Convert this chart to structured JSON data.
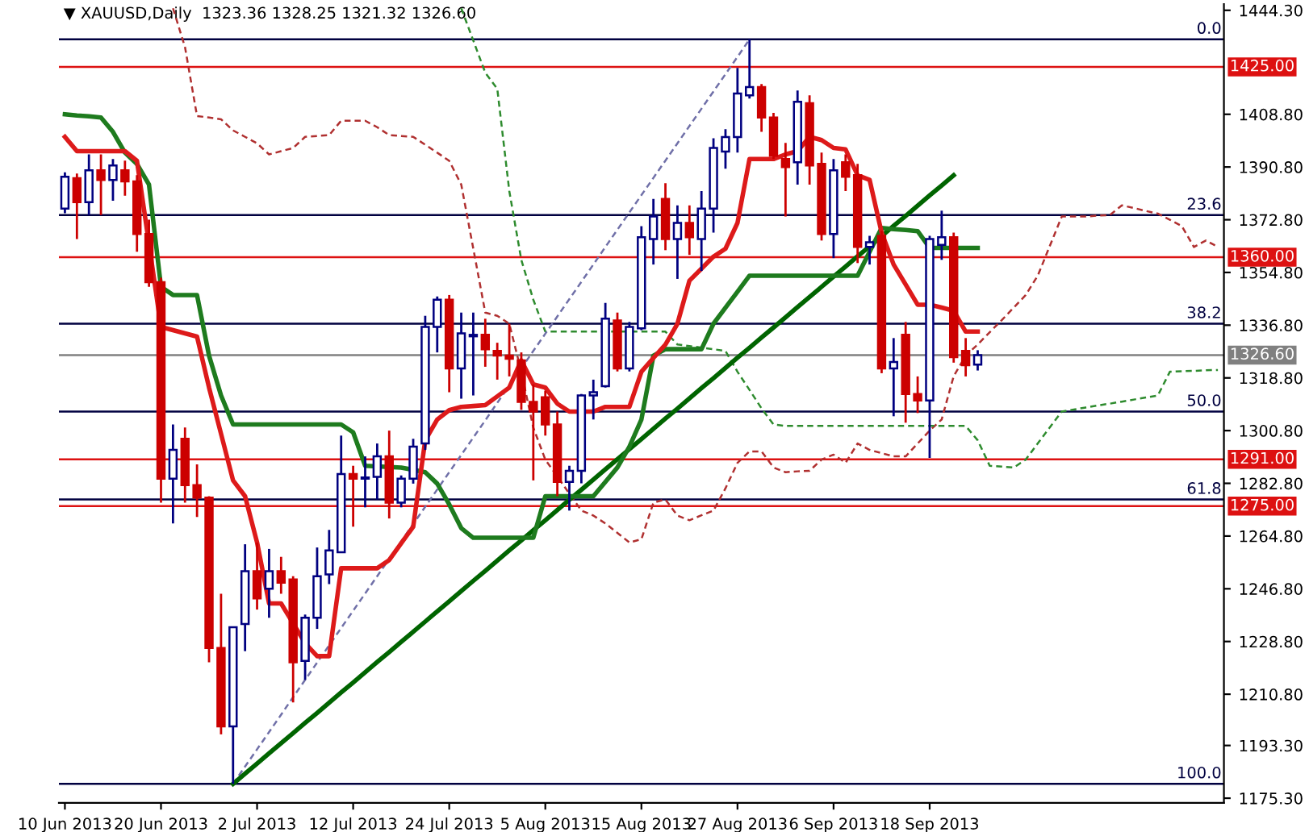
{
  "chart_data": {
    "type": "candlestick",
    "title": "▼ XAUUSD,Daily  1323.36 1328.25 1321.32 1326.60",
    "categories": [
      "10 Jun 2013",
      null,
      null,
      null,
      null,
      null,
      null,
      null,
      "20 Jun 2013",
      null,
      null,
      null,
      null,
      null,
      null,
      null,
      "2 Jul 2013",
      null,
      null,
      null,
      null,
      null,
      null,
      null,
      "12 Jul 2013",
      null,
      null,
      null,
      null,
      null,
      null,
      null,
      "24 Jul 2013",
      null,
      null,
      null,
      null,
      null,
      null,
      null,
      "5 Aug 2013",
      null,
      null,
      null,
      null,
      null,
      null,
      null,
      "15 Aug 2013",
      null,
      null,
      null,
      null,
      null,
      null,
      null,
      "27 Aug 2013",
      null,
      null,
      null,
      null,
      null,
      null,
      null,
      "6 Sep 2013",
      null,
      null,
      null,
      null,
      null,
      null,
      null,
      "18 Sep 2013",
      null,
      null,
      null,
      null,
      null,
      null,
      null,
      null,
      null,
      null,
      null,
      null,
      null,
      null,
      null,
      null,
      null,
      null,
      null,
      null,
      null,
      null,
      null,
      null
    ],
    "ohlc": [
      [
        1376.6,
        1389.0,
        1375.0,
        1387.5
      ],
      [
        1387.0,
        1388.6,
        1366.2,
        1378.8
      ],
      [
        1378.8,
        1395.1,
        1374.4,
        1389.7
      ],
      [
        1389.7,
        1395.1,
        1374.4,
        1386.4
      ],
      [
        1386.4,
        1393.5,
        1379.3,
        1391.3
      ],
      [
        1389.7,
        1393.0,
        1381.0,
        1385.9
      ],
      [
        1385.9,
        1388.0,
        1361.9,
        1367.9
      ],
      [
        1367.9,
        1372.8,
        1349.9,
        1351.5
      ],
      [
        1351.5,
        1353.0,
        1276.2,
        1284.4
      ],
      [
        1284.4,
        1302.9,
        1269.1,
        1294.2
      ],
      [
        1298.0,
        1301.9,
        1276.2,
        1282.2
      ],
      [
        1282.2,
        1289.3,
        1271.3,
        1277.9
      ],
      [
        1277.9,
        1278.4,
        1221.7,
        1226.6
      ],
      [
        1226.6,
        1245.1,
        1197.1,
        1199.8
      ],
      [
        1199.8,
        1233.7,
        1180.2,
        1233.7
      ],
      [
        1234.8,
        1262.0,
        1225.5,
        1252.8
      ],
      [
        1252.8,
        1262.6,
        1239.7,
        1243.5
      ],
      [
        1246.8,
        1260.4,
        1236.9,
        1252.8
      ],
      [
        1252.8,
        1257.7,
        1245.1,
        1248.9
      ],
      [
        1250.0,
        1251.1,
        1208.0,
        1221.7
      ],
      [
        1222.2,
        1238.0,
        1215.7,
        1236.9
      ],
      [
        1236.9,
        1260.9,
        1233.1,
        1251.1
      ],
      [
        1251.7,
        1266.9,
        1248.4,
        1259.9
      ],
      [
        1259.3,
        1299.1,
        1259.3,
        1286.0
      ],
      [
        1286.0,
        1288.8,
        1268.0,
        1284.4
      ],
      [
        1284.4,
        1292.0,
        1274.6,
        1284.6
      ],
      [
        1285.0,
        1296.4,
        1277.3,
        1292.0
      ],
      [
        1292.0,
        1300.8,
        1270.8,
        1276.2
      ],
      [
        1276.2,
        1285.5,
        1274.6,
        1284.4
      ],
      [
        1284.4,
        1298.0,
        1282.7,
        1295.3
      ],
      [
        1296.4,
        1340.0,
        1294.2,
        1336.2
      ],
      [
        1336.2,
        1346.6,
        1327.5,
        1345.5
      ],
      [
        1345.5,
        1347.1,
        1313.9,
        1322.0
      ],
      [
        1322.0,
        1341.1,
        1311.7,
        1334.0
      ],
      [
        1333.0,
        1341.1,
        1312.8,
        1333.5
      ],
      [
        1333.5,
        1339.0,
        1322.6,
        1328.6
      ],
      [
        1328.0,
        1330.8,
        1318.2,
        1326.4
      ],
      [
        1326.4,
        1337.3,
        1319.3,
        1325.3
      ],
      [
        1324.8,
        1327.5,
        1307.9,
        1310.6
      ],
      [
        1310.6,
        1316.6,
        1283.8,
        1307.3
      ],
      [
        1312.2,
        1314.4,
        1299.1,
        1302.9
      ],
      [
        1302.9,
        1307.3,
        1278.4,
        1283.3
      ],
      [
        1283.3,
        1288.8,
        1273.5,
        1287.1
      ],
      [
        1287.1,
        1313.3,
        1282.8,
        1312.8
      ],
      [
        1312.8,
        1318.2,
        1304.6,
        1313.9
      ],
      [
        1316.0,
        1344.4,
        1315.5,
        1339.0
      ],
      [
        1338.4,
        1341.1,
        1321.0,
        1322.0
      ],
      [
        1322.0,
        1337.9,
        1321.0,
        1336.2
      ],
      [
        1335.7,
        1370.6,
        1335.1,
        1366.8
      ],
      [
        1366.2,
        1379.9,
        1357.5,
        1373.9
      ],
      [
        1379.9,
        1385.3,
        1362.4,
        1366.2
      ],
      [
        1366.2,
        1377.7,
        1352.6,
        1371.7
      ],
      [
        1371.7,
        1377.7,
        1360.8,
        1366.8
      ],
      [
        1366.2,
        1382.6,
        1355.3,
        1376.6
      ],
      [
        1376.6,
        1400.6,
        1368.4,
        1397.3
      ],
      [
        1396.1,
        1403.7,
        1390.2,
        1401.0
      ],
      [
        1401.0,
        1424.6,
        1395.7,
        1415.9
      ],
      [
        1415.3,
        1434.4,
        1414.2,
        1418.1
      ],
      [
        1418.1,
        1419.1,
        1402.8,
        1407.7
      ],
      [
        1407.7,
        1409.3,
        1393.5,
        1394.6
      ],
      [
        1393.5,
        1399.0,
        1373.9,
        1390.8
      ],
      [
        1392.4,
        1416.9,
        1384.8,
        1413.1
      ],
      [
        1412.6,
        1415.3,
        1384.8,
        1391.3
      ],
      [
        1391.9,
        1395.7,
        1365.7,
        1367.9
      ],
      [
        1367.9,
        1393.5,
        1359.7,
        1389.7
      ],
      [
        1392.4,
        1395.1,
        1382.6,
        1387.5
      ],
      [
        1388.0,
        1391.9,
        1358.0,
        1363.5
      ],
      [
        1363.5,
        1367.3,
        1357.5,
        1365.1
      ],
      [
        1367.3,
        1369.0,
        1320.4,
        1322.0
      ],
      [
        1322.0,
        1332.4,
        1305.7,
        1324.2
      ],
      [
        1333.5,
        1337.9,
        1303.5,
        1313.3
      ],
      [
        1313.3,
        1319.3,
        1306.8,
        1311.1
      ],
      [
        1311.1,
        1367.3,
        1291.5,
        1366.2
      ],
      [
        1364.2,
        1375.9,
        1359.1,
        1366.8
      ],
      [
        1366.8,
        1368.4,
        1324.0,
        1325.9
      ],
      [
        1328.0,
        1332.4,
        1319.3,
        1323.1
      ],
      [
        1323.36,
        1328.25,
        1321.32,
        1326.6
      ],
      null,
      null,
      null,
      null,
      null,
      null,
      null,
      null,
      null,
      null,
      null,
      null,
      null,
      null,
      null,
      null,
      null,
      null,
      null,
      null
    ],
    "colors": [
      "#000080",
      "#cc0000",
      "#000080",
      "#cc0000",
      "#000080",
      "#cc0000",
      "#cc0000",
      "#cc0000",
      "#cc0000",
      "#000080",
      "#cc0000",
      "#cc0000",
      "#cc0000",
      "#cc0000",
      "#000080",
      "#000080",
      "#cc0000",
      "#000080",
      "#cc0000",
      "#cc0000",
      "#000080",
      "#000080",
      "#000080",
      "#000080",
      "#cc0000",
      "#000080",
      "#000080",
      "#cc0000",
      "#000080",
      "#000080",
      "#000080",
      "#000080",
      "#cc0000",
      "#000080",
      "#000080",
      "#cc0000",
      "#cc0000",
      "#cc0000",
      "#cc0000",
      "#cc0000",
      "#cc0000",
      "#cc0000",
      "#000080",
      "#000080",
      "#000080",
      "#000080",
      "#cc0000",
      "#000080",
      "#000080",
      "#000080",
      "#cc0000",
      "#000080",
      "#cc0000",
      "#000080",
      "#000080",
      "#000080",
      "#000080",
      "#000080",
      "#cc0000",
      "#cc0000",
      "#cc0000",
      "#000080",
      "#cc0000",
      "#cc0000",
      "#000080",
      "#cc0000",
      "#cc0000",
      "#000080",
      "#cc0000",
      "#000080",
      "#cc0000",
      "#cc0000",
      "#000080",
      "#000080",
      "#cc0000",
      "#cc0000",
      "#000080",
      null,
      null,
      null,
      null,
      null,
      null,
      null,
      null,
      null,
      null,
      null,
      null,
      null,
      null,
      null,
      null,
      null,
      null,
      null,
      null
    ],
    "series": [
      {
        "type": "line",
        "color": "#b03030",
        "line_style": "dashed",
        "values": [
          null,
          null,
          null,
          null,
          null,
          null,
          null,
          null,
          null,
          1445.0,
          1431.7,
          1408.2,
          1407.7,
          1407.1,
          1403.3,
          1401.1,
          1398.9,
          1395.1,
          1396.2,
          1397.3,
          1401.1,
          1401.4,
          1401.7,
          1406.6,
          1406.6,
          1406.6,
          1404.4,
          1401.7,
          1401.4,
          1401.1,
          1398.4,
          1395.7,
          1392.9,
          1384.8,
          1363.0,
          1341.1,
          1340.0,
          1337.3,
          1320.9,
          1301.8,
          1290.9,
          1285.1,
          1279.3,
          1273.5,
          1271.8,
          1269.1,
          1265.9,
          1262.6,
          1263.7,
          1276.2,
          1277.3,
          1271.8,
          1270.2,
          1271.9,
          1273.5,
          1281.1,
          1289.8,
          1293.7,
          1293.7,
          1288.2,
          1286.6,
          1286.9,
          1287.1,
          1290.9,
          1292.6,
          1289.8,
          1296.4,
          1294.2,
          1293.1,
          1292.0,
          1292.0,
          1296.4,
          1300.8,
          1304.6,
          1319.4,
          1326.4,
          1330.2,
          1334.4,
          1338.5,
          1342.8,
          1347.1,
          1353.7,
          1363.8,
          1373.9,
          1373.9,
          1373.9,
          1374.2,
          1374.4,
          1377.7,
          1376.8,
          1375.8,
          1374.9,
          1372.8,
          1370.6,
          1363.5,
          1365.7,
          1363.5
        ]
      },
      {
        "type": "line",
        "color": "#2e8b2e",
        "line_style": "dashed",
        "values": [
          null,
          null,
          null,
          null,
          null,
          null,
          null,
          null,
          null,
          null,
          null,
          null,
          null,
          null,
          null,
          null,
          null,
          null,
          null,
          null,
          null,
          null,
          null,
          null,
          null,
          null,
          null,
          null,
          null,
          null,
          null,
          null,
          null,
          1445.0,
          1434.0,
          1423.0,
          1417.5,
          1382.6,
          1359.1,
          1345.5,
          1334.6,
          1334.6,
          1334.6,
          1334.6,
          1334.6,
          1334.6,
          1334.6,
          1334.6,
          1334.6,
          1334.6,
          1334.6,
          1330.2,
          1329.7,
          1329.1,
          1328.6,
          1328.0,
          1320.9,
          1314.7,
          1308.4,
          1302.9,
          1302.4,
          1302.4,
          1302.4,
          1302.4,
          1302.4,
          1302.4,
          1302.4,
          1302.4,
          1302.4,
          1302.4,
          1302.4,
          1302.4,
          1302.4,
          1302.4,
          1302.4,
          1302.4,
          1297.5,
          1288.8,
          1288.5,
          1288.2,
          1290.9,
          1296.4,
          1301.9,
          1307.3,
          1308.0,
          1308.7,
          1309.4,
          1310.0,
          1310.7,
          1311.4,
          1312.1,
          1312.8,
          1320.9,
          1321.1,
          1321.2,
          1321.4,
          1321.5
        ]
      },
      {
        "type": "line",
        "color": "#7070a8",
        "line_style": "dashed",
        "values": [
          null,
          null,
          null,
          null,
          null,
          null,
          null,
          null,
          null,
          null,
          null,
          null,
          null,
          null,
          1180.2,
          1186.1,
          1192.0,
          1197.9,
          1203.8,
          1209.8,
          1215.7,
          1221.6,
          1227.5,
          1233.4,
          1239.3,
          1245.2,
          1251.1,
          1257.0,
          1263.0,
          1268.9,
          1274.8,
          1280.7,
          1286.6,
          1292.5,
          1298.4,
          1304.3,
          1310.3,
          1316.2,
          1322.1,
          1328.0,
          1333.9,
          1339.8,
          1345.7,
          1351.6,
          1357.5,
          1363.5,
          1369.4,
          1375.3,
          1381.2,
          1387.1,
          1393.0,
          1398.9,
          1404.8,
          1410.7,
          1416.6,
          1422.5,
          1428.4,
          1434.4,
          null,
          null,
          null,
          null,
          null,
          null,
          null,
          null,
          null,
          null,
          null,
          null,
          null,
          null,
          null,
          null,
          null,
          null,
          null,
          null,
          null,
          null,
          null,
          null,
          null,
          null,
          null,
          null,
          null,
          null,
          null,
          null,
          null,
          null,
          null,
          null,
          null,
          null,
          null
        ]
      },
      {
        "type": "line",
        "color": "#006400",
        "line_style": "solid",
        "values": [
          null,
          null,
          null,
          null,
          null,
          null,
          null,
          null,
          null,
          null,
          null,
          null,
          null,
          null,
          1180.2,
          1183.7,
          1187.1,
          1190.6,
          1194.1,
          1197.5,
          1201.0,
          1204.4,
          1207.9,
          1211.4,
          1214.8,
          1218.3,
          1221.8,
          1225.2,
          1228.7,
          1232.1,
          1235.6,
          1239.1,
          1242.5,
          1246.0,
          1249.5,
          1252.9,
          1256.4,
          1259.9,
          1263.3,
          1266.8,
          1270.2,
          1273.7,
          1277.2,
          1280.6,
          1284.1,
          1287.6,
          1291.0,
          1294.5,
          1297.9,
          1301.4,
          1304.9,
          1308.3,
          1311.8,
          1315.3,
          1318.7,
          1322.2,
          1325.7,
          1329.1,
          1332.6,
          1336.0,
          1339.5,
          1343.0,
          1346.4,
          1349.9,
          1353.4,
          1356.8,
          1360.3,
          1363.7,
          1367.2,
          1370.7,
          1374.1,
          1377.6,
          1381.1,
          1384.5,
          1388.0,
          null,
          null,
          null,
          null,
          null,
          null,
          null,
          null,
          null,
          null,
          null,
          null,
          null,
          null,
          null,
          null,
          null,
          null,
          null,
          null,
          null,
          null
        ]
      },
      {
        "type": "line",
        "color": "#1e7b1e",
        "line_style": "solid",
        "values": [
          1408.8,
          1408.4,
          1408.1,
          1407.7,
          1402.8,
          1395.7,
          1391.8,
          1384.8,
          1349.9,
          1347.1,
          1347.1,
          1347.1,
          1326.4,
          1312.8,
          1302.9,
          1302.9,
          1302.9,
          1302.9,
          1302.9,
          1302.9,
          1302.9,
          1302.9,
          1302.9,
          1302.9,
          1300.2,
          1288.8,
          1288.6,
          1288.4,
          1288.2,
          1287.4,
          1286.6,
          1282.7,
          1275.6,
          1267.5,
          1264.2,
          1264.2,
          1264.2,
          1264.2,
          1264.2,
          1264.2,
          1278.4,
          1278.4,
          1278.4,
          1278.4,
          1278.4,
          1283.3,
          1288.2,
          1295.3,
          1304.6,
          1326.4,
          1328.6,
          1328.6,
          1328.6,
          1328.6,
          1337.3,
          1342.8,
          1348.2,
          1353.7,
          1353.7,
          1353.7,
          1353.7,
          1353.7,
          1353.7,
          1353.7,
          1353.7,
          1353.7,
          1353.7,
          1361.9,
          1370.0,
          1369.6,
          1369.3,
          1368.9,
          1363.2,
          1363.2,
          1363.2,
          1363.2,
          1363.2,
          null,
          null,
          null,
          null,
          null,
          null,
          null,
          null,
          null,
          null,
          null,
          null,
          null,
          null,
          null,
          null,
          null,
          null,
          null,
          null
        ]
      },
      {
        "type": "line",
        "color": "#dd1a1a",
        "line_style": "solid",
        "values": [
          1401.1,
          1396.2,
          1396.2,
          1396.2,
          1396.2,
          1396.2,
          1392.9,
          1364.6,
          1336.2,
          1335.1,
          1334.0,
          1332.9,
          1315.5,
          1299.7,
          1283.8,
          1278.4,
          1262.6,
          1241.8,
          1241.8,
          1235.0,
          1228.2,
          1223.8,
          1223.8,
          1253.8,
          1253.8,
          1253.8,
          1253.8,
          1256.6,
          1262.3,
          1268.0,
          1297.5,
          1304.6,
          1307.8,
          1308.9,
          1309.2,
          1309.5,
          1312.5,
          1315.5,
          1324.8,
          1316.6,
          1315.5,
          1310.0,
          1307.3,
          1307.3,
          1307.3,
          1308.9,
          1308.9,
          1308.9,
          1320.9,
          1325.6,
          1330.2,
          1337.3,
          1352.0,
          1356.1,
          1360.2,
          1362.9,
          1371.7,
          1393.5,
          1393.5,
          1393.5,
          1395.1,
          1396.2,
          1401.1,
          1400.0,
          1397.3,
          1396.8,
          1388.0,
          1386.4,
          1368.4,
          1357.5,
          1350.7,
          1343.8,
          1343.8,
          1342.8,
          1341.7,
          1334.6,
          1334.6,
          null,
          null,
          null,
          null,
          null,
          null,
          null,
          null,
          null,
          null,
          null,
          null,
          null,
          null,
          null,
          null,
          null,
          null,
          null,
          null
        ]
      }
    ],
    "ref_lines": [
      {
        "axis": "y",
        "value": 1434.4,
        "color": "#000040"
      },
      {
        "axis": "y",
        "value": 1374.4,
        "color": "#000040"
      },
      {
        "axis": "y",
        "value": 1337.3,
        "color": "#000040"
      },
      {
        "axis": "y",
        "value": 1307.3,
        "color": "#000040"
      },
      {
        "axis": "y",
        "value": 1277.3,
        "color": "#000040"
      },
      {
        "axis": "y",
        "value": 1180.2,
        "color": "#000040"
      },
      {
        "axis": "y",
        "value": 1425.0,
        "label": "1425.00",
        "color": "#dd1111"
      },
      {
        "axis": "y",
        "value": 1360.0,
        "label": "1360.00",
        "color": "#dd1111"
      },
      {
        "axis": "y",
        "value": 1291.0,
        "label": "1291.00",
        "color": "#dd1111"
      },
      {
        "axis": "y",
        "value": 1275.0,
        "label": "1275.00",
        "color": "#dd1111"
      },
      {
        "axis": "y",
        "value": 1326.6,
        "label": "1326.60",
        "color": "#808080"
      }
    ],
    "annotations": [
      {
        "text": "0.0",
        "y": 1434.4
      },
      {
        "text": "23.6",
        "y": 1374.4
      },
      {
        "text": "38.2",
        "y": 1337.3
      },
      {
        "text": "50.0",
        "y": 1307.3
      },
      {
        "text": "61.8",
        "y": 1277.3
      },
      {
        "text": "100.0",
        "y": 1180.2
      }
    ],
    "ylim": [
      1173.7,
      1446.4
    ],
    "yticks": [
      {
        "value": 1444.3,
        "label": "1444.30"
      },
      {
        "value": 1408.8,
        "label": "1408.80"
      },
      {
        "value": 1390.8,
        "label": "1390.80"
      },
      {
        "value": 1372.8,
        "label": "1372.80"
      },
      {
        "value": 1354.8,
        "label": "1354.80"
      },
      {
        "value": 1336.8,
        "label": "1336.80"
      },
      {
        "value": 1318.8,
        "label": "1318.80"
      },
      {
        "value": 1300.8,
        "label": "1300.80"
      },
      {
        "value": 1282.8,
        "label": "1282.80"
      },
      {
        "value": 1264.8,
        "label": "1264.80"
      },
      {
        "value": 1246.8,
        "label": "1246.80"
      },
      {
        "value": 1228.8,
        "label": "1228.80"
      },
      {
        "value": 1210.8,
        "label": "1210.80"
      },
      {
        "value": 1193.3,
        "label": "1193.30"
      },
      {
        "value": 1175.3,
        "label": "1175.30"
      }
    ]
  }
}
